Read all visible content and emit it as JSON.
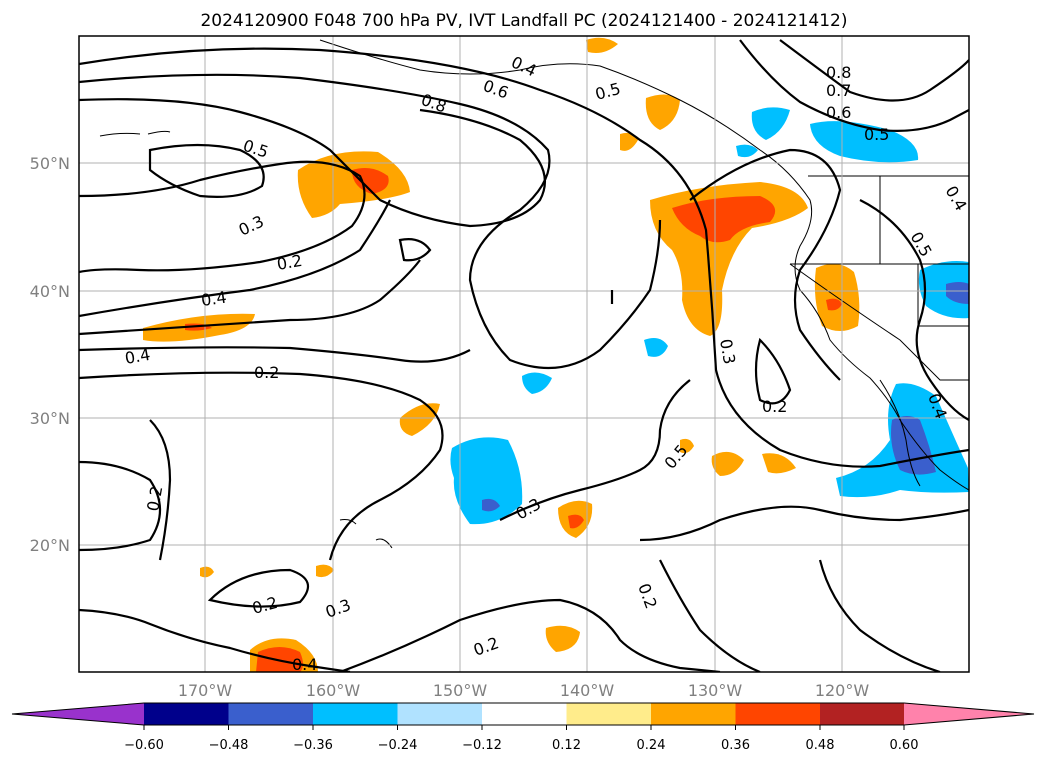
{
  "title": "2024120900 F048 700 hPa PV, IVT Landfall PC (2024121400 - 2024121412)",
  "lat_labels": [
    "50°N",
    "40°N",
    "30°N",
    "20°N"
  ],
  "lon_labels": [
    "170°W",
    "160°W",
    "150°W",
    "140°W",
    "130°W",
    "120°W"
  ],
  "colorbar": {
    "tick_labels": [
      "−0.60",
      "−0.48",
      "−0.36",
      "−0.24",
      "−0.12",
      "0.12",
      "0.24",
      "0.36",
      "0.48",
      "0.60"
    ],
    "colors": {
      "under": "#9932cc",
      "n060": "#00008b",
      "n048": "#3a5fcd",
      "n036": "#00bfff",
      "n024": "#b0e2ff",
      "neutral": "#ffffff",
      "p012": "#ffec8b",
      "p024": "#ffa500",
      "p036": "#ff4500",
      "p048": "#b22222",
      "over": "#ff82ab"
    }
  },
  "contour_labels": {
    "c1": "0.4",
    "c2": "0.6",
    "c3": "0.8",
    "c4": "0.5",
    "c5": "0.8",
    "c6": "0.7",
    "c7": "0.6",
    "c8": "0.5",
    "c9": "0.4",
    "c10": "0.5",
    "c11": "0.5",
    "c12": "0.3",
    "c13": "0.2",
    "c14": "0.4",
    "c15": "0.4",
    "c16": "0.2",
    "c17": "0.3",
    "c18": "0.2",
    "c19": "0.2",
    "c20": "0.3",
    "c21": "0.2",
    "c22": "0.3",
    "c23": "0.5",
    "c24": "0.2",
    "c25": "0.2",
    "c26": "0.4",
    "c27": "0.4"
  }
}
